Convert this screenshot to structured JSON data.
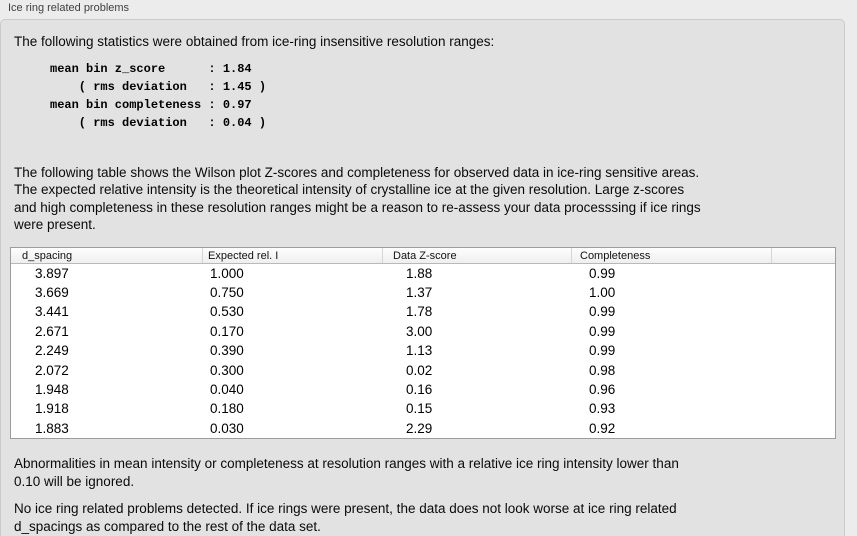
{
  "panel": {
    "title": "Ice ring related problems"
  },
  "stats": {
    "intro": "The following statistics were obtained from ice-ring insensitive resolution ranges:",
    "lines": [
      "mean bin z_score      : 1.84",
      "    ( rms deviation   : 1.45 )",
      "mean bin completeness : 0.97",
      "    ( rms deviation   : 0.04 )"
    ],
    "mean_bin_z_score": "1.84",
    "z_score_rms_deviation": "1.45",
    "mean_bin_completeness": "0.97",
    "completeness_rms_deviation": "0.04"
  },
  "sections": {
    "table_intro": "The following table shows the Wilson plot Z-scores and completeness for observed data in ice-ring sensitive areas.\nThe expected relative intensity is the theoretical intensity of crystalline ice at the given resolution. Large z-scores\nand high completeness in these resolution ranges might be a reason to re-assess your data processsing if ice rings\nwere present.",
    "ignore_note": "Abnormalities in mean intensity or completeness at resolution ranges with a relative ice ring intensity lower than\n0.10 will be ignored.",
    "conclusion": "No ice ring related problems detected. If ice rings were present, the data does not look worse at ice ring related\nd_spacings as compared to the rest of the data set."
  },
  "table": {
    "columns": [
      "d_spacing",
      "Expected rel. I",
      "Data Z-score",
      "Completeness",
      ""
    ],
    "rows": [
      [
        "3.897",
        "1.000",
        "1.88",
        "0.99"
      ],
      [
        "3.669",
        "0.750",
        "1.37",
        "1.00"
      ],
      [
        "3.441",
        "0.530",
        "1.78",
        "0.99"
      ],
      [
        "2.671",
        "0.170",
        "3.00",
        "0.99"
      ],
      [
        "2.249",
        "0.390",
        "1.13",
        "0.99"
      ],
      [
        "2.072",
        "0.300",
        "0.02",
        "0.98"
      ],
      [
        "1.948",
        "0.040",
        "0.16",
        "0.96"
      ],
      [
        "1.918",
        "0.180",
        "0.15",
        "0.93"
      ],
      [
        "1.883",
        "0.030",
        "2.29",
        "0.92"
      ]
    ]
  },
  "colors": {
    "page_background": "#ececec",
    "panel_background": "#e2e2e2",
    "panel_border": "#cbcbcb",
    "table_border": "#9c9c9c",
    "table_background": "#ffffff",
    "header_separator": "#d6d6d6",
    "text": "#000000"
  }
}
